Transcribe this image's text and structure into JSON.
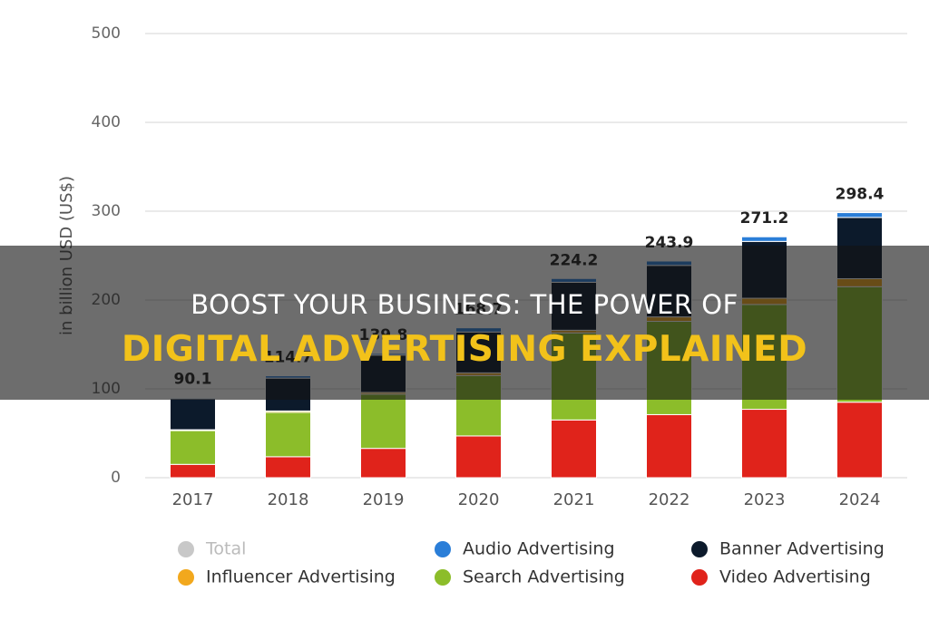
{
  "chart_data": {
    "type": "stacked-bar",
    "y_label": "in billion USD (US$)",
    "categories": [
      "2017",
      "2018",
      "2019",
      "2020",
      "2021",
      "2022",
      "2023",
      "2024"
    ],
    "series": [
      {
        "name": "Video Advertising",
        "color": "#e0231b",
        "values": [
          15,
          23.6,
          33,
          47,
          65,
          71,
          77,
          85
        ]
      },
      {
        "name": "Search Advertising",
        "color": "#8cbd2a",
        "values": [
          38,
          50,
          61,
          68,
          98,
          105,
          118,
          130
        ]
      },
      {
        "name": "Influencer Advertising",
        "color": "#f2a81d",
        "values": [
          1,
          1.5,
          2,
          3,
          3,
          5,
          7,
          9
        ]
      },
      {
        "name": "Banner Advertising",
        "color": "#0c1a2b",
        "values": [
          35,
          37,
          42,
          46,
          54,
          58,
          64,
          69
        ]
      },
      {
        "name": "Audio Advertising",
        "color": "#2a7ed8",
        "values": [
          1.1,
          2.6,
          1.8,
          4.7,
          4.2,
          4.9,
          5.2,
          5.4
        ]
      }
    ],
    "total": {
      "name": "Total",
      "color": "#c8c8c8",
      "values": [
        90.1,
        114.7,
        139.8,
        168.7,
        224.2,
        243.9,
        271.2,
        298.4
      ]
    },
    "ylim": [
      0,
      500
    ],
    "yticks": [
      0,
      100,
      200,
      300,
      400,
      500
    ],
    "grid": true
  },
  "banner": {
    "line1": "BOOST YOUR BUSINESS: THE POWER OF",
    "line2": "DIGITAL ADVERTISING EXPLAINED"
  }
}
